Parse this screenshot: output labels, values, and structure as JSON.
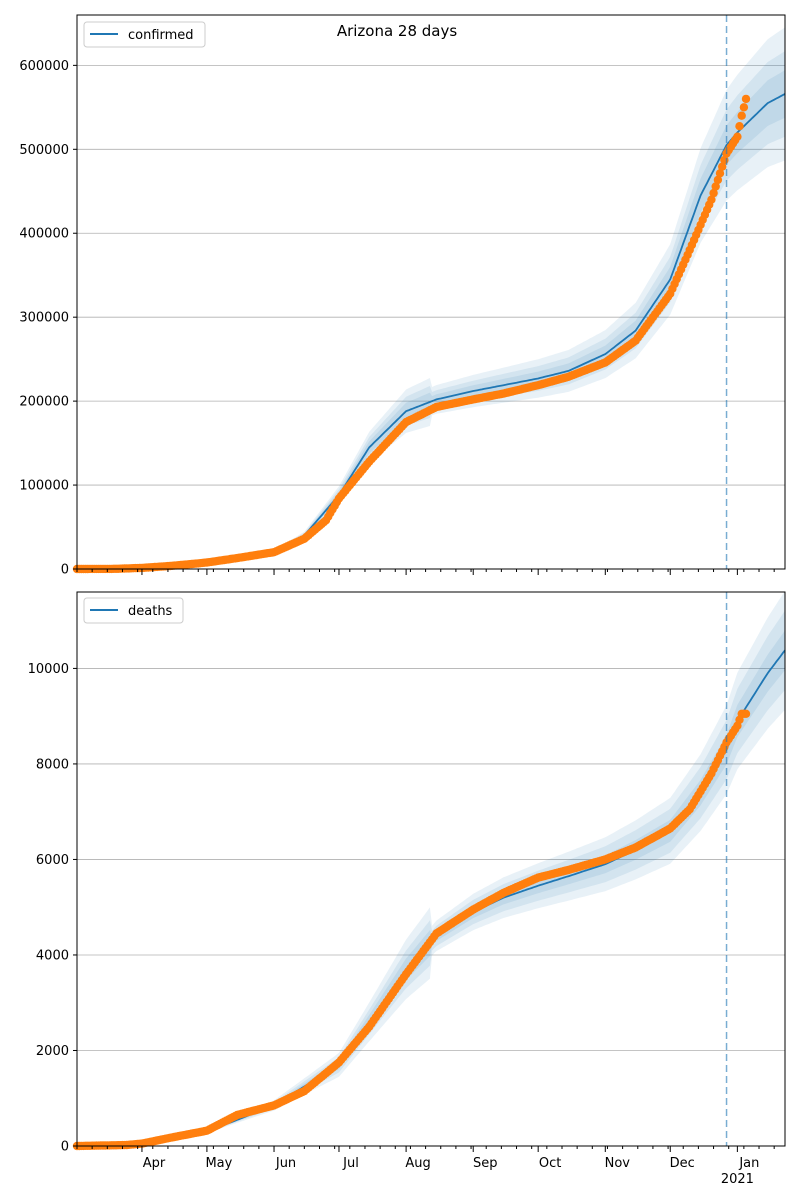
{
  "figure_title": "Arizona 28 days",
  "colors": {
    "model_line": "#1f77b4",
    "band": "#1f77b4",
    "observed": "#ff7f0e",
    "today_line": "#1f77b4",
    "grid": "#b0b0b0"
  },
  "x_ticks": [
    {
      "label": "Apr",
      "date": "2020-04-01"
    },
    {
      "label": "May",
      "date": "2020-05-01"
    },
    {
      "label": "Jun",
      "date": "2020-06-01"
    },
    {
      "label": "Jul",
      "date": "2020-07-01"
    },
    {
      "label": "Aug",
      "date": "2020-08-01"
    },
    {
      "label": "Sep",
      "date": "2020-09-01"
    },
    {
      "label": "Oct",
      "date": "2020-10-01"
    },
    {
      "label": "Nov",
      "date": "2020-11-01"
    },
    {
      "label": "Dec",
      "date": "2020-12-01"
    },
    {
      "label": "Jan",
      "date": "2021-01-01"
    }
  ],
  "x_year_label": "2021",
  "x_range": [
    "2020-03-02",
    "2021-01-23"
  ],
  "today_marker_date": "2020-12-27",
  "chart_data": [
    {
      "type": "line",
      "legend": "confirmed",
      "legend_position": "top-left",
      "grid": "y",
      "ylim": [
        0,
        660000
      ],
      "yticks": [
        0,
        100000,
        200000,
        300000,
        400000,
        500000,
        600000
      ],
      "model_series": [
        [
          "2020-03-02",
          0
        ],
        [
          "2020-04-01",
          1000
        ],
        [
          "2020-05-01",
          8000
        ],
        [
          "2020-06-01",
          20000
        ],
        [
          "2020-06-15",
          40000
        ],
        [
          "2020-07-01",
          88000
        ],
        [
          "2020-07-15",
          145000
        ],
        [
          "2020-08-01",
          188000
        ],
        [
          "2020-08-15",
          202000
        ],
        [
          "2020-09-01",
          212000
        ],
        [
          "2020-09-15",
          219000
        ],
        [
          "2020-10-01",
          227000
        ],
        [
          "2020-10-15",
          236000
        ],
        [
          "2020-11-01",
          256000
        ],
        [
          "2020-11-15",
          284000
        ],
        [
          "2020-12-01",
          345000
        ],
        [
          "2020-12-15",
          445000
        ],
        [
          "2020-12-27",
          505000
        ],
        [
          "2021-01-01",
          520000
        ],
        [
          "2021-01-15",
          555000
        ],
        [
          "2021-01-23",
          566000
        ]
      ],
      "band_relative_width": [
        [
          0.18,
          0.02,
          0.14
        ],
        [
          0.12,
          0.012,
          0.09
        ],
        [
          0.07,
          0.006,
          0.05
        ]
      ],
      "observed_points": [
        [
          "2020-03-02",
          0
        ],
        [
          "2020-03-20",
          200
        ],
        [
          "2020-04-01",
          1300
        ],
        [
          "2020-04-15",
          3800
        ],
        [
          "2020-05-01",
          7700
        ],
        [
          "2020-05-15",
          13000
        ],
        [
          "2020-06-01",
          20000
        ],
        [
          "2020-06-15",
          36000
        ],
        [
          "2020-06-25",
          58000
        ],
        [
          "2020-07-01",
          84000
        ],
        [
          "2020-07-15",
          128000
        ],
        [
          "2020-08-01",
          175000
        ],
        [
          "2020-08-15",
          193000
        ],
        [
          "2020-09-01",
          202000
        ],
        [
          "2020-09-15",
          209000
        ],
        [
          "2020-10-01",
          219000
        ],
        [
          "2020-10-15",
          229000
        ],
        [
          "2020-11-01",
          246000
        ],
        [
          "2020-11-15",
          272000
        ],
        [
          "2020-12-01",
          328000
        ],
        [
          "2020-12-10",
          380000
        ],
        [
          "2020-12-20",
          440000
        ],
        [
          "2020-12-27",
          495000
        ],
        [
          "2021-01-01",
          515000
        ],
        [
          "2021-01-03",
          540000
        ],
        [
          "2021-01-05",
          560000
        ]
      ]
    },
    {
      "type": "line",
      "legend": "deaths",
      "legend_position": "top-left",
      "grid": "y",
      "ylim": [
        0,
        11600
      ],
      "yticks": [
        0,
        2000,
        4000,
        6000,
        8000,
        10000
      ],
      "model_series": [
        [
          "2020-03-02",
          0
        ],
        [
          "2020-04-01",
          30
        ],
        [
          "2020-05-01",
          300
        ],
        [
          "2020-06-01",
          850
        ],
        [
          "2020-07-01",
          1700
        ],
        [
          "2020-07-15",
          2600
        ],
        [
          "2020-08-01",
          3700
        ],
        [
          "2020-08-15",
          4400
        ],
        [
          "2020-09-01",
          4900
        ],
        [
          "2020-09-15",
          5200
        ],
        [
          "2020-10-01",
          5450
        ],
        [
          "2020-10-15",
          5650
        ],
        [
          "2020-11-01",
          5900
        ],
        [
          "2020-11-15",
          6200
        ],
        [
          "2020-12-01",
          6600
        ],
        [
          "2020-12-15",
          7400
        ],
        [
          "2020-12-27",
          8300
        ],
        [
          "2021-01-01",
          8900
        ],
        [
          "2021-01-15",
          9900
        ],
        [
          "2021-01-23",
          10380
        ]
      ],
      "band_relative_width": [
        [
          0.22,
          0.03,
          0.12
        ],
        [
          0.14,
          0.02,
          0.08
        ],
        [
          0.08,
          0.01,
          0.04
        ]
      ],
      "observed_points": [
        [
          "2020-03-02",
          0
        ],
        [
          "2020-03-25",
          20
        ],
        [
          "2020-04-01",
          50
        ],
        [
          "2020-04-15",
          180
        ],
        [
          "2020-05-01",
          320
        ],
        [
          "2020-05-15",
          650
        ],
        [
          "2020-06-01",
          850
        ],
        [
          "2020-06-15",
          1150
        ],
        [
          "2020-07-01",
          1750
        ],
        [
          "2020-07-15",
          2500
        ],
        [
          "2020-08-01",
          3600
        ],
        [
          "2020-08-15",
          4450
        ],
        [
          "2020-09-01",
          4950
        ],
        [
          "2020-09-15",
          5300
        ],
        [
          "2020-10-01",
          5620
        ],
        [
          "2020-10-15",
          5780
        ],
        [
          "2020-11-01",
          6000
        ],
        [
          "2020-11-15",
          6250
        ],
        [
          "2020-12-01",
          6650
        ],
        [
          "2020-12-10",
          7050
        ],
        [
          "2020-12-20",
          7800
        ],
        [
          "2020-12-27",
          8450
        ],
        [
          "2021-01-01",
          8800
        ],
        [
          "2021-01-03",
          9050
        ],
        [
          "2021-01-05",
          9050
        ]
      ]
    }
  ]
}
